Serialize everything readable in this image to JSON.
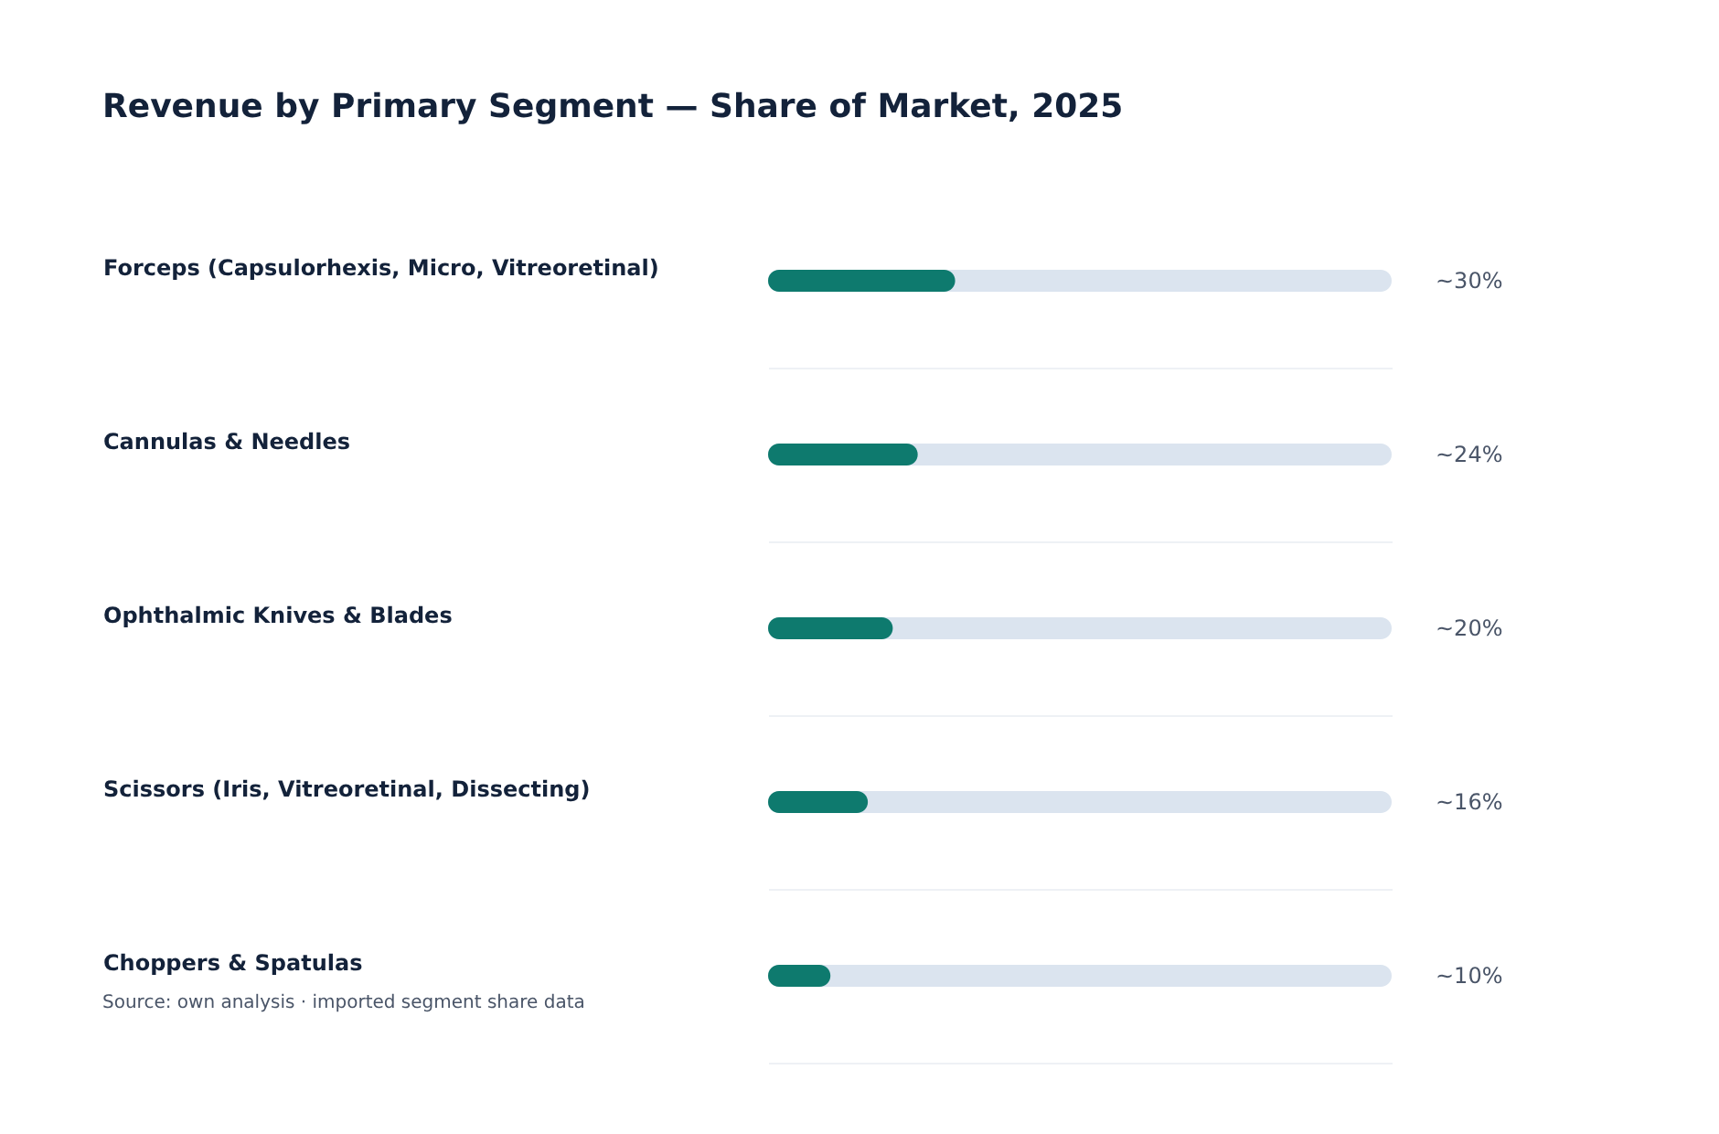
{
  "chart_data": {
    "type": "bar",
    "orientation": "horizontal",
    "title": "Revenue by Primary Segment — Share of Market, 2025",
    "categories": [
      "Forceps (Capsulorhexis, Micro, Vitreoretinal)",
      "Cannulas & Needles",
      "Ophthalmic Knives & Blades",
      "Scissors (Iris, Vitreoretinal, Dissecting)",
      "Choppers & Spatulas"
    ],
    "values": [
      30,
      24,
      20,
      16,
      10
    ],
    "value_labels": [
      "~30%",
      "~24%",
      "~20%",
      "~16%",
      "~10%"
    ],
    "color": "#0e7a6e",
    "xlim": [
      0,
      100
    ],
    "grid": "y",
    "tick_labels": "y",
    "annotations": [
      "Source: own analysis · imported segment share data"
    ]
  }
}
